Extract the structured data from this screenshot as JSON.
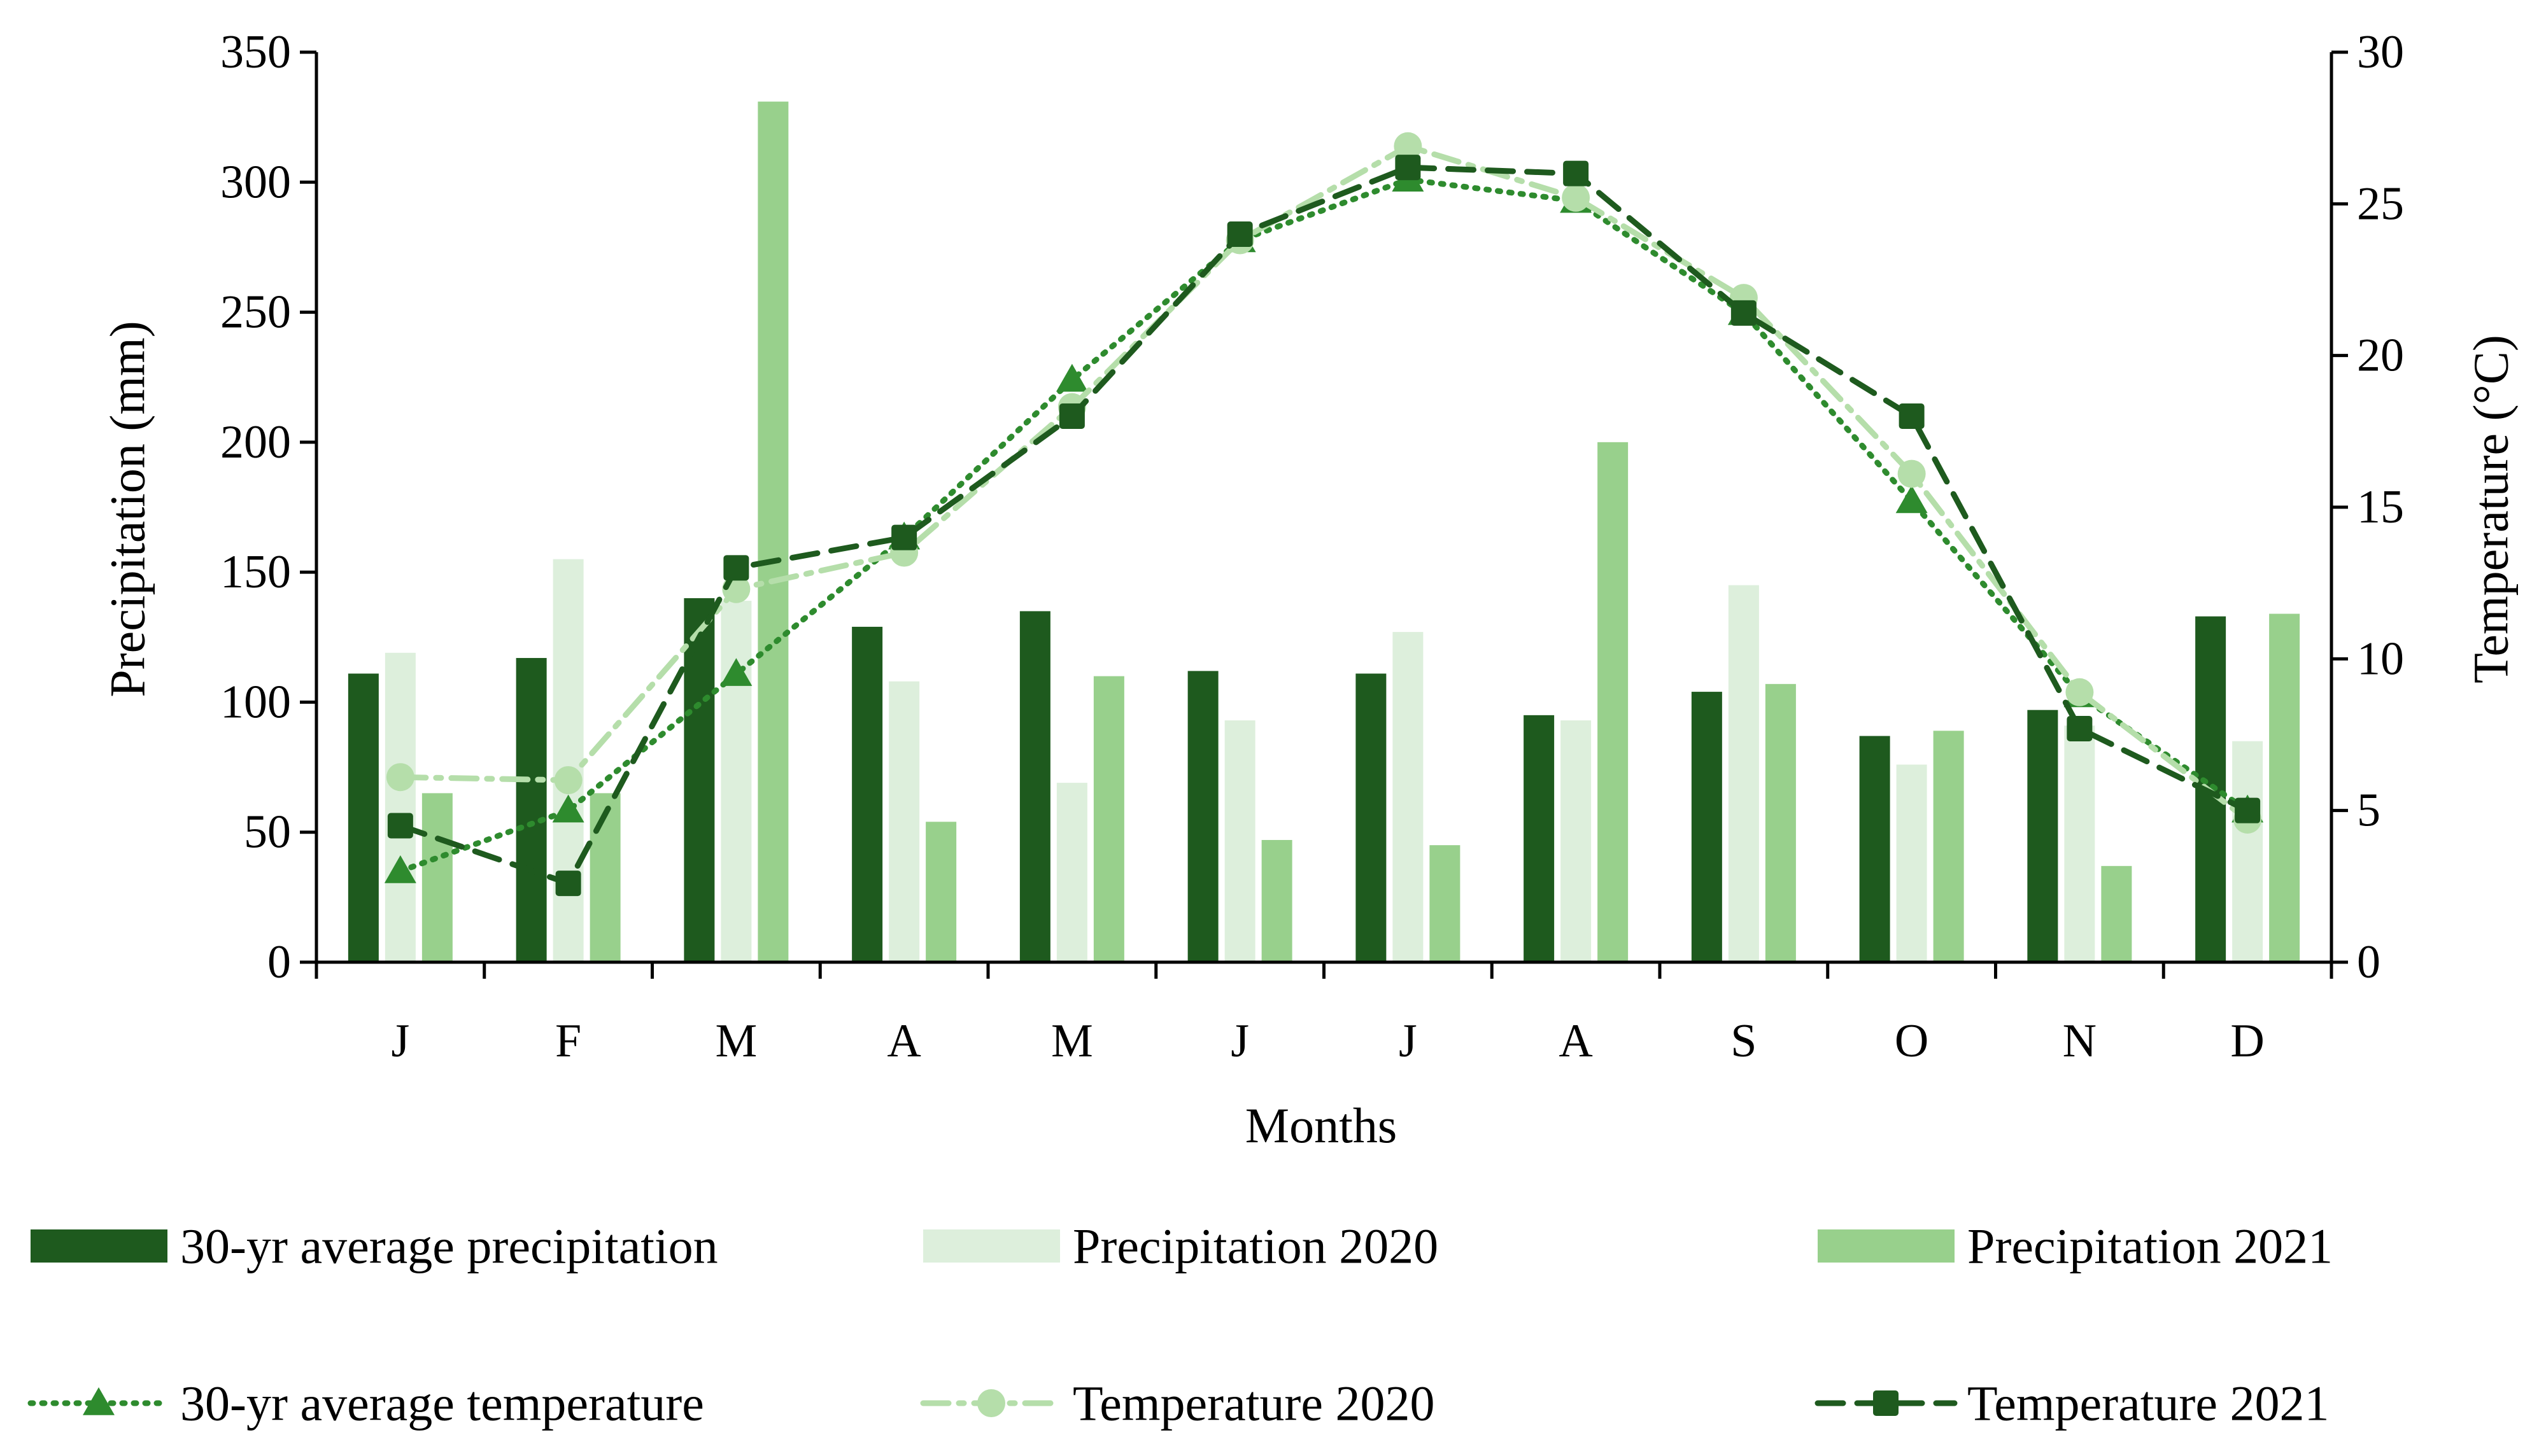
{
  "chart_data": {
    "type": "bar",
    "title": "",
    "categories": [
      "J",
      "F",
      "M",
      "A",
      "M",
      "J",
      "J",
      "A",
      "S",
      "O",
      "N",
      "D"
    ],
    "xlabel": "Months",
    "ylabel": "Precipitation (mm)",
    "y2label": "Temperature (°C)",
    "ylim": [
      0,
      350
    ],
    "y2lim": [
      0,
      30
    ],
    "yticks": [
      "0",
      "50",
      "100",
      "150",
      "200",
      "250",
      "300",
      "350"
    ],
    "y2ticks": [
      "0",
      "5",
      "10",
      "15",
      "20",
      "25",
      "30"
    ],
    "bar_series": [
      {
        "name": "30-yr average precipitation",
        "color": "#1e5a1e",
        "values": [
          111,
          117,
          140,
          129,
          135,
          112,
          111,
          95,
          104,
          87,
          97,
          133
        ]
      },
      {
        "name": "Precipitation 2020",
        "color": "#ddefdc",
        "values": [
          119,
          155,
          139,
          108,
          69,
          93,
          127,
          93,
          145,
          76,
          91,
          85
        ]
      },
      {
        "name": "Precipitation 2021",
        "color": "#98d08c",
        "values": [
          65,
          65,
          331,
          54,
          110,
          47,
          45,
          200,
          107,
          89,
          37,
          134
        ]
      }
    ],
    "line_series": [
      {
        "name": "30-yr average temperature",
        "color": "#2e8b2e",
        "dash": "dotted",
        "marker": "triangle",
        "values": [
          3.0,
          5.0,
          9.5,
          14.0,
          19.2,
          23.8,
          25.8,
          25.1,
          21.4,
          15.2,
          8.8,
          5.0
        ]
      },
      {
        "name": "Temperature 2020",
        "color": "#b5deaa",
        "dash": "dashdot",
        "marker": "circle",
        "values": [
          6.1,
          6.0,
          12.3,
          13.5,
          18.3,
          23.8,
          26.9,
          25.2,
          21.9,
          16.1,
          8.9,
          4.7
        ]
      },
      {
        "name": "Temperature 2021",
        "color": "#1e5a1e",
        "dash": "dashed",
        "marker": "square",
        "values": [
          4.5,
          2.6,
          13.0,
          14.0,
          18.0,
          24.0,
          26.2,
          26.0,
          21.4,
          18.0,
          7.7,
          5.0
        ]
      }
    ],
    "legend_position": "bottom"
  }
}
